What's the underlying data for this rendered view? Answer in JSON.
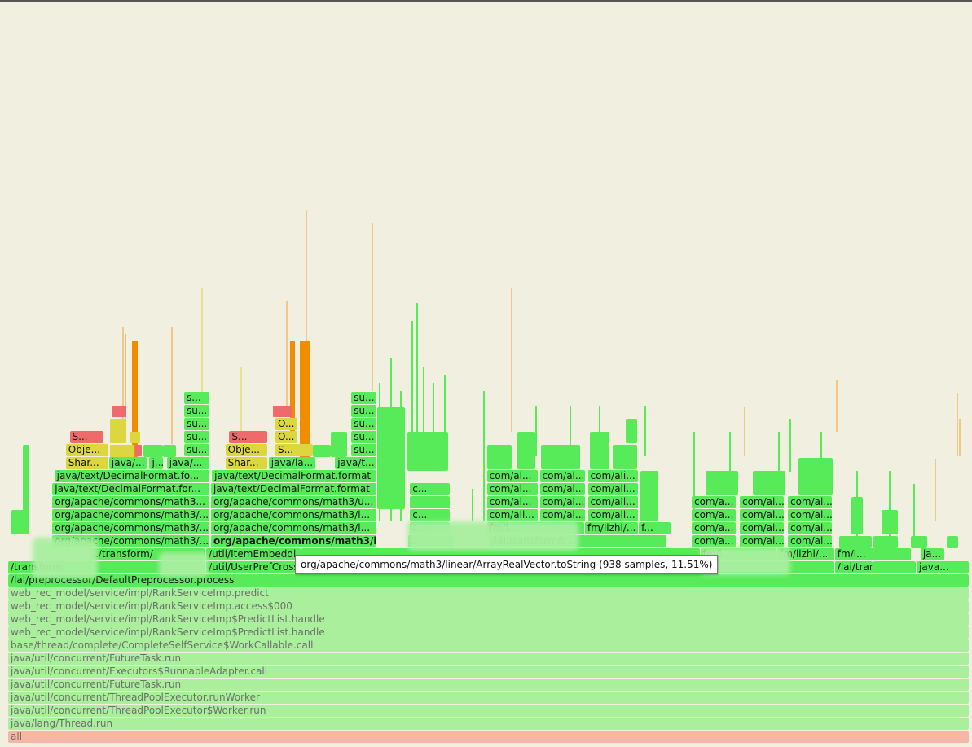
{
  "chart_data": {
    "type": "flame",
    "colors": {
      "background": "#f1efdf",
      "java_frame": "#57ea59",
      "root_frame": "#f6b6a6",
      "faded_frame": "#aaf09c",
      "native_yellow": "#dcd63f",
      "kernel_red": "#ef6b6b",
      "inline_orange": "#f08c00"
    },
    "rows": [
      {
        "frames": [
          {
            "label": "all",
            "start": 0,
            "end": 1,
            "color": "root_frame",
            "faded": true
          }
        ]
      },
      {
        "frames": [
          {
            "label": "java/lang/Thread.run",
            "start": 0,
            "end": 1,
            "color": "faded_frame",
            "faded": true
          }
        ]
      },
      {
        "frames": [
          {
            "label": "java/util/concurrent/ThreadPoolExecutor$Worker.run",
            "start": 0,
            "end": 1,
            "color": "faded_frame",
            "faded": true
          }
        ]
      },
      {
        "frames": [
          {
            "label": "java/util/concurrent/ThreadPoolExecutor.runWorker",
            "start": 0,
            "end": 1,
            "color": "faded_frame",
            "faded": true
          }
        ]
      },
      {
        "frames": [
          {
            "label": "java/util/concurrent/FutureTask.run",
            "start": 0,
            "end": 1,
            "color": "faded_frame",
            "faded": true
          }
        ]
      },
      {
        "frames": [
          {
            "label": "java/util/concurrent/Executors$RunnableAdapter.call",
            "start": 0,
            "end": 1,
            "color": "faded_frame",
            "faded": true
          }
        ]
      },
      {
        "frames": [
          {
            "label": "java/util/concurrent/FutureTask.run",
            "start": 0,
            "end": 1,
            "color": "faded_frame",
            "faded": true
          }
        ]
      },
      {
        "frames": [
          {
            "label": "base/thread/complete/CompleteSelfService$WorkCallable.call",
            "start": 0,
            "end": 1,
            "color": "faded_frame",
            "faded": true
          }
        ]
      },
      {
        "frames": [
          {
            "label": "web_rec_model/service/impl/RankServiceImp$PredictList.handle",
            "start": 0,
            "end": 1,
            "color": "faded_frame",
            "faded": true
          }
        ]
      },
      {
        "frames": [
          {
            "label": "web_rec_model/service/impl/RankServiceImp$PredictList.handle",
            "start": 0,
            "end": 1,
            "color": "faded_frame",
            "faded": true
          }
        ]
      },
      {
        "frames": [
          {
            "label": "web_rec_model/service/impl/RankServiceImp.access$000",
            "start": 0,
            "end": 1,
            "color": "faded_frame",
            "faded": true
          }
        ]
      },
      {
        "frames": [
          {
            "label": "web_rec_model/service/impl/RankServiceImp.predict",
            "start": 0,
            "end": 1,
            "color": "faded_frame",
            "faded": true
          }
        ]
      },
      {
        "frames": [
          {
            "label": "/lai/preprocessor/DefaultPreprocessor.process",
            "start": 0,
            "end": 1,
            "color": "java_frame"
          }
        ]
      },
      {
        "frames": [
          {
            "label": "/transform/",
            "start": 0.0,
            "end": 0.205,
            "color": "java_frame"
          },
          {
            "label": "/util/UserPrefCrossIter",
            "start": 0.206,
            "end": 0.305,
            "color": "java_frame"
          },
          {
            "label": "",
            "start": 0.718,
            "end": 0.86,
            "color": "java_frame"
          },
          {
            "label": "/lai/transformer/...",
            "start": 0.86,
            "end": 0.9,
            "color": "java_frame"
          },
          {
            "label": "",
            "start": 0.9,
            "end": 0.945,
            "color": "java_frame"
          },
          {
            "label": "java...",
            "start": 0.945,
            "end": 1.0,
            "color": "java_frame"
          }
        ]
      },
      {
        "frames": [
          {
            "label": "../transform/",
            "start": 0.085,
            "end": 0.205,
            "color": "java_frame"
          },
          {
            "label": "/util/ItemEmbeddi",
            "start": 0.206,
            "end": 0.305,
            "color": "java_frame"
          },
          {
            "label": "",
            "start": 0.305,
            "end": 0.72,
            "color": "java_frame"
          },
          {
            "label": "fm/l...",
            "start": 0.72,
            "end": 0.8,
            "color": "java_frame"
          },
          {
            "label": "fm/lizhi/...",
            "start": 0.8,
            "end": 0.86,
            "color": "java_frame"
          },
          {
            "label": "fm/l...",
            "start": 0.86,
            "end": 0.94,
            "color": "java_frame"
          },
          {
            "label": "ja...",
            "start": 0.949,
            "end": 0.975,
            "color": "java_frame"
          }
        ]
      },
      {
        "frames": [
          {
            "label": "org/apache/commons/math3/...",
            "start": 0.046,
            "end": 0.21,
            "color": "java_frame"
          },
          {
            "label": "org/apache/commons/math3/l...",
            "start": 0.211,
            "end": 0.384,
            "color": "java_frame",
            "bold": true
          },
          {
            "label": "...",
            "start": 0.416,
            "end": 0.464,
            "color": "java_frame"
          },
          {
            "label": "/lai/transform/t...",
            "start": 0.5,
            "end": 0.686,
            "color": "java_frame"
          },
          {
            "label": "com/a...",
            "start": 0.711,
            "end": 0.758,
            "color": "java_frame"
          },
          {
            "label": "com/al...",
            "start": 0.761,
            "end": 0.808,
            "color": "java_frame"
          },
          {
            "label": "com/al...",
            "start": 0.811,
            "end": 0.858,
            "color": "java_frame"
          }
        ]
      },
      {
        "frames": [
          {
            "label": "org/apache/commons/math3/...",
            "start": 0.046,
            "end": 0.21,
            "color": "java_frame"
          },
          {
            "label": "org/apache/commons/math3/l...",
            "start": 0.211,
            "end": 0.384,
            "color": "java_frame"
          },
          {
            "label": "c...",
            "start": 0.418,
            "end": 0.46,
            "color": "java_frame"
          },
          {
            "label": "fm/l...",
            "start": 0.498,
            "end": 0.6,
            "color": "java_frame"
          },
          {
            "label": "fm/lizhi/...",
            "start": 0.6,
            "end": 0.656,
            "color": "java_frame"
          },
          {
            "label": "f...",
            "start": 0.656,
            "end": 0.69,
            "color": "java_frame"
          },
          {
            "label": "com/a...",
            "start": 0.711,
            "end": 0.758,
            "color": "java_frame"
          },
          {
            "label": "com/al...",
            "start": 0.761,
            "end": 0.808,
            "color": "java_frame"
          },
          {
            "label": "com/al...",
            "start": 0.811,
            "end": 0.858,
            "color": "java_frame"
          }
        ]
      },
      {
        "frames": [
          {
            "label": "org/apache/commons/math3/...",
            "start": 0.046,
            "end": 0.21,
            "color": "java_frame"
          },
          {
            "label": "org/apache/commons/math3/l...",
            "start": 0.211,
            "end": 0.384,
            "color": "java_frame"
          },
          {
            "label": "c...",
            "start": 0.418,
            "end": 0.46,
            "color": "java_frame"
          },
          {
            "label": "com/ali...",
            "start": 0.498,
            "end": 0.552,
            "color": "java_frame"
          },
          {
            "label": "com/al...",
            "start": 0.553,
            "end": 0.601,
            "color": "java_frame"
          },
          {
            "label": "com/ali...",
            "start": 0.603,
            "end": 0.656,
            "color": "java_frame"
          },
          {
            "label": "com/a...",
            "start": 0.711,
            "end": 0.758,
            "color": "java_frame"
          },
          {
            "label": "com/al...",
            "start": 0.761,
            "end": 0.808,
            "color": "java_frame"
          },
          {
            "label": "com/al...",
            "start": 0.811,
            "end": 0.858,
            "color": "java_frame"
          }
        ]
      },
      {
        "frames": [
          {
            "label": "org/apache/commons/math3...",
            "start": 0.046,
            "end": 0.21,
            "color": "java_frame"
          },
          {
            "label": "org/apache/commons/math3/u...",
            "start": 0.211,
            "end": 0.384,
            "color": "java_frame"
          },
          {
            "label": "",
            "start": 0.418,
            "end": 0.46,
            "color": "java_frame"
          },
          {
            "label": "com/al...",
            "start": 0.498,
            "end": 0.552,
            "color": "java_frame"
          },
          {
            "label": "com/al...",
            "start": 0.553,
            "end": 0.601,
            "color": "java_frame"
          },
          {
            "label": "com/ali...",
            "start": 0.603,
            "end": 0.656,
            "color": "java_frame"
          },
          {
            "label": "com/a...",
            "start": 0.711,
            "end": 0.758,
            "color": "java_frame"
          },
          {
            "label": "com/al...",
            "start": 0.761,
            "end": 0.808,
            "color": "java_frame"
          },
          {
            "label": "com/al...",
            "start": 0.811,
            "end": 0.858,
            "color": "java_frame"
          }
        ]
      },
      {
        "frames": [
          {
            "label": "java/text/DecimalFormat.for...",
            "start": 0.046,
            "end": 0.21,
            "color": "java_frame"
          },
          {
            "label": "java/text/DecimalFormat.format",
            "start": 0.211,
            "end": 0.384,
            "color": "java_frame"
          },
          {
            "label": "c...",
            "start": 0.418,
            "end": 0.46,
            "color": "java_frame"
          },
          {
            "label": "com/al...",
            "start": 0.498,
            "end": 0.552,
            "color": "java_frame"
          },
          {
            "label": "com/al...",
            "start": 0.553,
            "end": 0.601,
            "color": "java_frame"
          },
          {
            "label": "com/ali...",
            "start": 0.603,
            "end": 0.656,
            "color": "java_frame"
          }
        ]
      },
      {
        "frames": [
          {
            "label": "java/text/DecimalFormat.fo...",
            "start": 0.048,
            "end": 0.21,
            "color": "java_frame"
          },
          {
            "label": "java/text/DecimalFormat.format",
            "start": 0.212,
            "end": 0.384,
            "color": "java_frame"
          },
          {
            "label": "com/al...",
            "start": 0.498,
            "end": 0.552,
            "color": "java_frame"
          },
          {
            "label": "com/al...",
            "start": 0.553,
            "end": 0.601,
            "color": "java_frame"
          },
          {
            "label": "com/ali...",
            "start": 0.603,
            "end": 0.656,
            "color": "java_frame"
          }
        ]
      },
      {
        "frames": [
          {
            "label": "Shar...",
            "start": 0.06,
            "end": 0.105,
            "color": "native_yellow"
          },
          {
            "label": "java/...",
            "start": 0.105,
            "end": 0.145,
            "color": "java_frame"
          },
          {
            "label": "j...",
            "start": 0.147,
            "end": 0.162,
            "color": "java_frame"
          },
          {
            "label": "java/...",
            "start": 0.165,
            "end": 0.21,
            "color": "java_frame"
          },
          {
            "label": "Shar...",
            "start": 0.226,
            "end": 0.27,
            "color": "native_yellow"
          },
          {
            "label": "java/la...",
            "start": 0.271,
            "end": 0.32,
            "color": "java_frame"
          },
          {
            "label": "java/t...",
            "start": 0.34,
            "end": 0.384,
            "color": "java_frame"
          }
        ]
      },
      {
        "frames": [
          {
            "label": "Obje...",
            "start": 0.06,
            "end": 0.105,
            "color": "native_yellow"
          },
          {
            "label": "su...",
            "start": 0.183,
            "end": 0.21,
            "color": "java_frame"
          },
          {
            "label": "Obje...",
            "start": 0.226,
            "end": 0.27,
            "color": "native_yellow"
          },
          {
            "label": "S...",
            "start": 0.278,
            "end": 0.318,
            "color": "native_yellow"
          },
          {
            "label": "su...",
            "start": 0.357,
            "end": 0.384,
            "color": "java_frame"
          }
        ]
      },
      {
        "frames": [
          {
            "label": "S...",
            "start": 0.064,
            "end": 0.1,
            "color": "kernel_red"
          },
          {
            "label": "su...",
            "start": 0.183,
            "end": 0.21,
            "color": "java_frame"
          },
          {
            "label": "S...",
            "start": 0.23,
            "end": 0.27,
            "color": "kernel_red"
          },
          {
            "label": "O...",
            "start": 0.278,
            "end": 0.302,
            "color": "native_yellow"
          },
          {
            "label": "su...",
            "start": 0.357,
            "end": 0.384,
            "color": "java_frame"
          }
        ]
      },
      {
        "frames": [
          {
            "label": "su...",
            "start": 0.183,
            "end": 0.21,
            "color": "java_frame"
          },
          {
            "label": "O...",
            "start": 0.278,
            "end": 0.302,
            "color": "native_yellow"
          },
          {
            "label": "su...",
            "start": 0.357,
            "end": 0.384,
            "color": "java_frame"
          }
        ]
      },
      {
        "frames": [
          {
            "label": "su...",
            "start": 0.183,
            "end": 0.21,
            "color": "java_frame"
          },
          {
            "label": "su...",
            "start": 0.357,
            "end": 0.384,
            "color": "java_frame"
          }
        ]
      },
      {
        "frames": [
          {
            "label": "s...",
            "start": 0.183,
            "end": 0.21,
            "color": "java_frame"
          },
          {
            "label": "su...",
            "start": 0.357,
            "end": 0.384,
            "color": "java_frame"
          }
        ]
      }
    ],
    "tooltip": "org/apache/commons/math3/linear/ArrayRealVector.toString (938 samples, 11.51%)"
  }
}
